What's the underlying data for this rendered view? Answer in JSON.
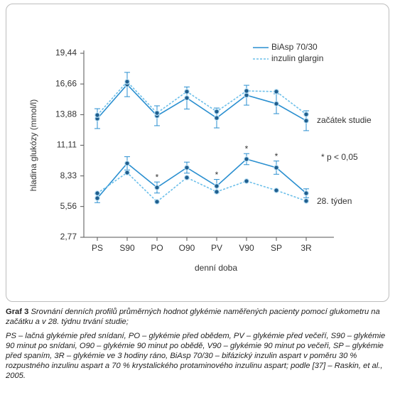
{
  "chart_data": {
    "type": "line",
    "ylabel": "hladina glukózy (mmol/l)",
    "xlabel": "denní doba",
    "categories": [
      "PS",
      "S90",
      "PO",
      "O90",
      "PV",
      "V90",
      "SP",
      "3R"
    ],
    "ylim": [
      2.77,
      19.44
    ],
    "yticks": [
      {
        "value": 2.77,
        "label": "2,77"
      },
      {
        "value": 5.56,
        "label": "5,56"
      },
      {
        "value": 8.33,
        "label": "8,33"
      },
      {
        "value": 11.11,
        "label": "11,11"
      },
      {
        "value": 13.88,
        "label": "13,88"
      },
      {
        "value": 16.66,
        "label": "16,66"
      },
      {
        "value": 19.44,
        "label": "19,44"
      }
    ],
    "group_labels": [
      "začátek studie",
      "28. týden"
    ],
    "series": [
      {
        "name": "BiAsp 70/30",
        "color": "#2a8fd0",
        "dashed": false,
        "values": [
          13.52,
          16.61,
          13.78,
          15.39,
          13.58,
          15.64,
          14.87,
          13.33
        ],
        "errors": [
          0.9,
          1.1,
          0.9,
          1.0,
          0.9,
          0.9,
          0.9,
          0.9
        ],
        "values_week28": [
          6.31,
          9.47,
          7.28,
          9.08,
          7.41,
          9.85,
          9.08,
          6.76
        ],
        "errors_week28": [
          0.4,
          0.6,
          0.5,
          0.5,
          0.6,
          0.5,
          0.6,
          0.4
        ]
      },
      {
        "name": "inzulin glargin",
        "color": "#6cbfea",
        "dashed": true,
        "values": [
          13.84,
          16.87,
          14.03,
          15.97,
          14.16,
          16.03,
          15.97,
          13.91
        ],
        "values_week28": [
          6.76,
          8.63,
          5.99,
          8.18,
          6.89,
          7.86,
          7.02,
          6.06
        ]
      }
    ],
    "significance_mark": "*",
    "significant_categories": [
      2,
      4,
      5,
      6
    ],
    "annotation": "* p < 0,05"
  },
  "caption": {
    "label": "Graf 3",
    "title": "Srovnání denních profilů průměrných hodnot glykémie naměřených pacienty pomocí glukometru na začátku a v 28. týdnu trvání studie;",
    "legend": "PS – lačná glykémie před snídaní, PO – glykémie před obědem, PV – glykémie před večeří, S90 – glykémie 90 minut po snídani, O90 – glykémie 90 minut po obědě, V90 – glykémie 90 minut po večeři, SP – glykémie před spaním, 3R – glykémie ve 3 hodiny ráno, BiAsp 70/30 – bifázický inzulin aspart v poměru 30 % rozpustného inzulinu aspart a 70 % krystalického protaminového inzulinu aspart; podle [37] – Raskin, et al., 2005."
  }
}
